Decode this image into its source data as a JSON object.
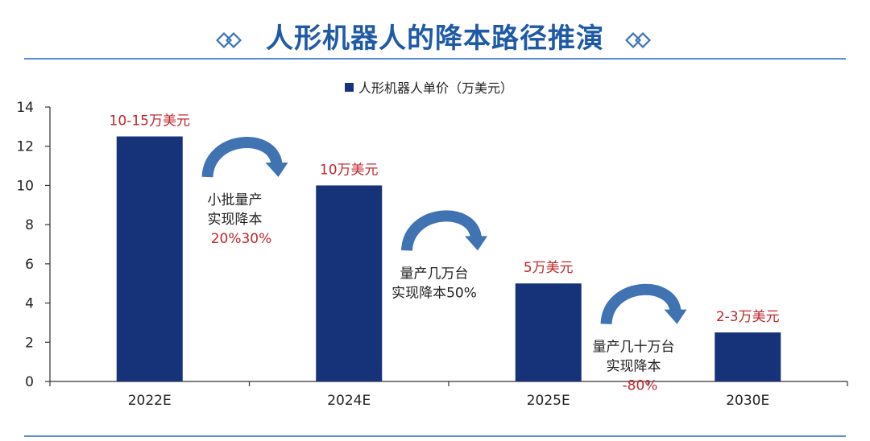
{
  "header": {
    "title": "人形机器人的降本路径推演"
  },
  "colors": {
    "bar": "#16337a",
    "arrow": "#3f73b2",
    "red": "#c0272d",
    "title": "#1f5aa6"
  },
  "chart_data": {
    "type": "bar",
    "categories": [
      "2022E",
      "2024E",
      "2025E",
      "2030E"
    ],
    "series": [
      {
        "name": "人形机器人单价（万美元）",
        "values": [
          12.5,
          10,
          5,
          2.5
        ]
      }
    ],
    "ylim": [
      0,
      14
    ],
    "yticks": [
      0,
      2,
      4,
      6,
      8,
      10,
      12,
      14
    ],
    "legend": "top-center",
    "data_labels": [
      "10-15万美元",
      "10万美元",
      "5万美元",
      "2-3万美元"
    ],
    "annotations": [
      {
        "lines": [
          "小批量产",
          "实现降本"
        ],
        "highlight": "20%30%"
      },
      {
        "lines": [
          "量产几万台",
          "实现降本50%"
        ],
        "highlight": ""
      },
      {
        "lines": [
          "量产几十万台",
          "实现降本"
        ],
        "highlight": "-80%"
      }
    ]
  }
}
